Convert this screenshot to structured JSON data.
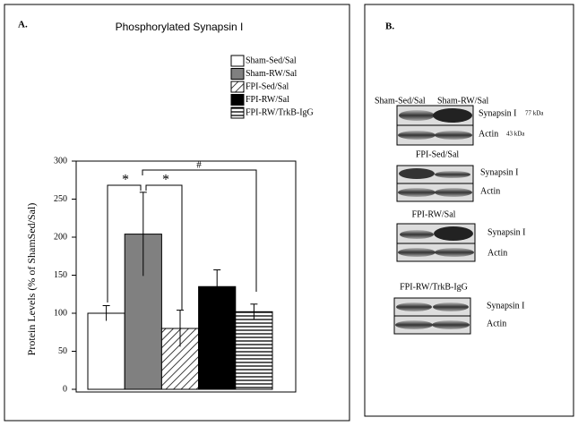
{
  "chart_data": {
    "type": "bar",
    "panel_label": "A.",
    "title": "Phosphorylated Synapsin I",
    "y_label": "Protein Levels (% of ShamSed/Sal)",
    "categories": [
      "Sham-Sed/Sal",
      "Sham-RW/Sal",
      "FPI-Sed/Sal",
      "FPI-RW/Sal",
      "FPI-RW/TrkB-IgG"
    ],
    "values": [
      100,
      204,
      80,
      135,
      102
    ],
    "errors": [
      10,
      55,
      24,
      22,
      10
    ],
    "fills": [
      "#ffffff",
      "#808080",
      "diagonal-hatch",
      "#000000",
      "horizontal-stripes"
    ],
    "ylim": [
      0,
      300
    ],
    "yticks": [
      0,
      50,
      100,
      150,
      200,
      250,
      300
    ],
    "annotations": [
      "*",
      "*",
      "#"
    ]
  },
  "blot_panel": {
    "panel_label": "B.",
    "groups": [
      {
        "lanes": [
          "Sham-Sed/Sal",
          "Sham-RW/Sal"
        ],
        "rows": [
          {
            "name": "Synapsin I",
            "size": "77 kDa"
          },
          {
            "name": "Actin",
            "size": "43 kDa"
          }
        ]
      },
      {
        "title": "FPI-Sed/Sal",
        "rows": [
          {
            "name": "Synapsin I"
          },
          {
            "name": "Actin"
          }
        ]
      },
      {
        "title": "FPI-RW/Sal",
        "rows": [
          {
            "name": "Synapsin I"
          },
          {
            "name": "Actin"
          }
        ]
      },
      {
        "title": "FPI-RW/TrkB-IgG",
        "rows": [
          {
            "name": "Synapsin I"
          },
          {
            "name": "Actin"
          }
        ]
      }
    ]
  }
}
